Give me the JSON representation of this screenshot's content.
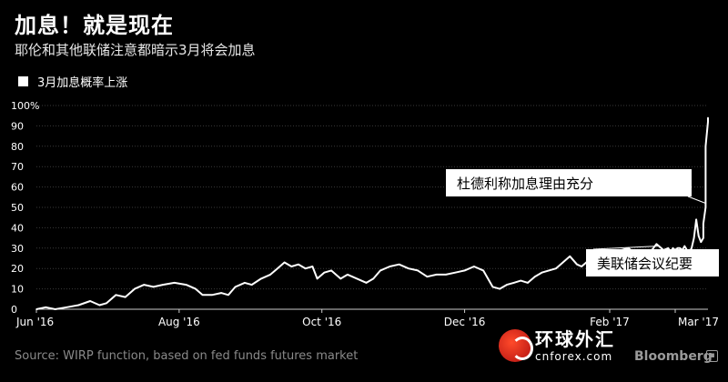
{
  "header": {
    "title": "加息！就是现在",
    "subtitle": "耶伦和其他联储注意都暗示3月将会加息"
  },
  "legend": {
    "label": "3月加息概率上涨"
  },
  "footer": {
    "source": "Source: WIRP function, based on fed funds futures market",
    "brand": "Bloomberg",
    "watermark_cn": "环球外汇",
    "watermark_en": "cnforex.com"
  },
  "colors": {
    "background": "#000000",
    "line": "#ffffff",
    "grid": "#3a3a3a",
    "callout_bg": "#ffffff",
    "callout_text": "#000000"
  },
  "chart_data": {
    "type": "line",
    "title": "加息！就是现在",
    "subtitle": "耶伦和其他联储注意都暗示3月将会加息",
    "xlabel": "",
    "ylabel": "",
    "ylim": [
      0,
      100
    ],
    "yticks": [
      0,
      10,
      20,
      30,
      40,
      50,
      60,
      70,
      80,
      90,
      100
    ],
    "ytick_labels": [
      "0",
      "10",
      "20",
      "30",
      "40",
      "50",
      "60",
      "70",
      "80",
      "90",
      "100%"
    ],
    "xlim": [
      "2016-06-01",
      "2017-03-15"
    ],
    "xticks": [
      "2016-06-01",
      "2016-08-01",
      "2016-10-01",
      "2016-12-01",
      "2017-02-01",
      "2017-03-01"
    ],
    "xtick_labels": [
      "Jun '16",
      "Aug '16",
      "Oct '16",
      "Dec '16",
      "Feb '17",
      "Mar '17"
    ],
    "grid": true,
    "legend": "top-left",
    "series": [
      {
        "name": "3月加息概率上涨",
        "points": [
          [
            "2016-06-01",
            0
          ],
          [
            "2016-06-05",
            1
          ],
          [
            "2016-06-09",
            0
          ],
          [
            "2016-06-14",
            1
          ],
          [
            "2016-06-19",
            2
          ],
          [
            "2016-06-24",
            4
          ],
          [
            "2016-06-28",
            2
          ],
          [
            "2016-07-01",
            3
          ],
          [
            "2016-07-05",
            7
          ],
          [
            "2016-07-09",
            6
          ],
          [
            "2016-07-13",
            10
          ],
          [
            "2016-07-17",
            12
          ],
          [
            "2016-07-21",
            11
          ],
          [
            "2016-07-25",
            12
          ],
          [
            "2016-07-30",
            13
          ],
          [
            "2016-08-04",
            12
          ],
          [
            "2016-08-08",
            10
          ],
          [
            "2016-08-11",
            7
          ],
          [
            "2016-08-15",
            7
          ],
          [
            "2016-08-19",
            8
          ],
          [
            "2016-08-22",
            7
          ],
          [
            "2016-08-25",
            11
          ],
          [
            "2016-08-29",
            13
          ],
          [
            "2016-09-01",
            12
          ],
          [
            "2016-09-05",
            15
          ],
          [
            "2016-09-09",
            17
          ],
          [
            "2016-09-12",
            20
          ],
          [
            "2016-09-15",
            23
          ],
          [
            "2016-09-18",
            21
          ],
          [
            "2016-09-21",
            22
          ],
          [
            "2016-09-24",
            20
          ],
          [
            "2016-09-27",
            21
          ],
          [
            "2016-09-29",
            15
          ],
          [
            "2016-10-02",
            18
          ],
          [
            "2016-10-05",
            19
          ],
          [
            "2016-10-09",
            15
          ],
          [
            "2016-10-12",
            17
          ],
          [
            "2016-10-16",
            15
          ],
          [
            "2016-10-20",
            13
          ],
          [
            "2016-10-23",
            15
          ],
          [
            "2016-10-26",
            19
          ],
          [
            "2016-10-30",
            21
          ],
          [
            "2016-11-03",
            22
          ],
          [
            "2016-11-07",
            20
          ],
          [
            "2016-11-11",
            19
          ],
          [
            "2016-11-15",
            16
          ],
          [
            "2016-11-19",
            17
          ],
          [
            "2016-11-23",
            17
          ],
          [
            "2016-11-27",
            18
          ],
          [
            "2016-12-01",
            19
          ],
          [
            "2016-12-05",
            21
          ],
          [
            "2016-12-09",
            19
          ],
          [
            "2016-12-13",
            11
          ],
          [
            "2016-12-16",
            10
          ],
          [
            "2016-12-19",
            12
          ],
          [
            "2016-12-22",
            13
          ],
          [
            "2016-12-25",
            14
          ],
          [
            "2016-12-28",
            13
          ],
          [
            "2016-12-31",
            16
          ],
          [
            "2017-01-03",
            18
          ],
          [
            "2017-01-06",
            19
          ],
          [
            "2017-01-09",
            20
          ],
          [
            "2017-01-12",
            23
          ],
          [
            "2017-01-15",
            26
          ],
          [
            "2017-01-18",
            22
          ],
          [
            "2017-01-20",
            21
          ],
          [
            "2017-01-23",
            24
          ],
          [
            "2017-01-26",
            24
          ],
          [
            "2017-01-29",
            26
          ],
          [
            "2017-02-01",
            28
          ],
          [
            "2017-02-03",
            29
          ],
          [
            "2017-02-06",
            29
          ],
          [
            "2017-02-09",
            30
          ],
          [
            "2017-02-11",
            28
          ],
          [
            "2017-02-13",
            29
          ],
          [
            "2017-02-15",
            29
          ],
          [
            "2017-02-17",
            29
          ],
          [
            "2017-02-19",
            29
          ],
          [
            "2017-02-21",
            32
          ],
          [
            "2017-02-23",
            30
          ],
          [
            "2017-02-24",
            29
          ],
          [
            "2017-02-26",
            30
          ],
          [
            "2017-02-27",
            28
          ],
          [
            "2017-02-28",
            30
          ],
          [
            "2017-03-01",
            29
          ],
          [
            "2017-03-02",
            30
          ],
          [
            "2017-03-03",
            30
          ],
          [
            "2017-03-04",
            29
          ],
          [
            "2017-03-05",
            31
          ],
          [
            "2017-03-06",
            29
          ],
          [
            "2017-03-07",
            28
          ],
          [
            "2017-03-08",
            30
          ],
          [
            "2017-03-09",
            35
          ],
          [
            "2017-03-10",
            44
          ],
          [
            "2017-03-11",
            36
          ],
          [
            "2017-03-12",
            33
          ],
          [
            "2017-03-13",
            35
          ],
          [
            "2017-03-13",
            40
          ],
          [
            "2017-03-13",
            42
          ],
          [
            "2017-03-14",
            50
          ],
          [
            "2017-03-14",
            52
          ],
          [
            "2017-03-14",
            80
          ],
          [
            "2017-03-15",
            92
          ],
          [
            "2017-03-15",
            94
          ]
        ]
      }
    ],
    "annotations": [
      {
        "text": "杜德利称加息理由充分",
        "x": "2017-03-14",
        "y": 52
      },
      {
        "text": "美联储会议纪要",
        "x": "2017-02-22",
        "y": 31
      }
    ]
  }
}
